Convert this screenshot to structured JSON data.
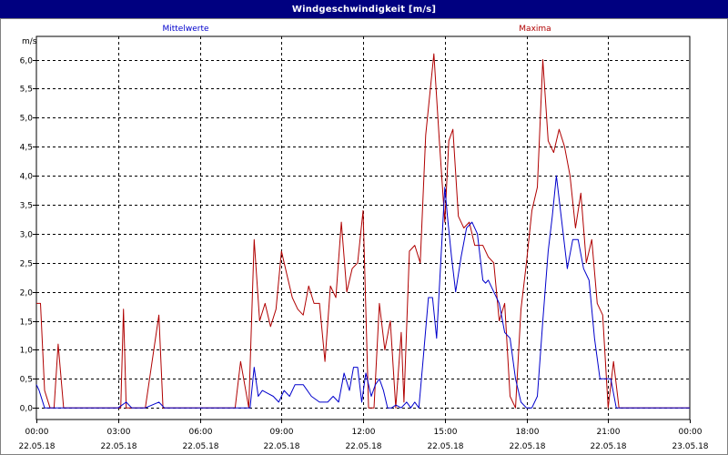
{
  "window": {
    "title": "Windgeschwindigkeit [m/s]"
  },
  "colors": {
    "titlebar": "#000080",
    "mean_series": "#0000cc",
    "max_series": "#b00000",
    "grid": "#000000",
    "text": "#000000"
  },
  "chart_data": {
    "type": "line",
    "ylabel": "m/s",
    "ylim": [
      -0.2,
      6.4
    ],
    "yticks": [
      0.0,
      0.5,
      1.0,
      1.5,
      2.0,
      2.5,
      3.0,
      3.5,
      4.0,
      4.5,
      5.0,
      5.5,
      6.0
    ],
    "ytick_labels": [
      "0,0",
      "0,5",
      "1,0",
      "1,5",
      "2,0",
      "2,5",
      "3,0",
      "3,5",
      "4,0",
      "4,5",
      "5,0",
      "5,5",
      "6,0"
    ],
    "xlim_hours": [
      0,
      24
    ],
    "xticks_hours": [
      0,
      3,
      6,
      9,
      12,
      15,
      18,
      21,
      24
    ],
    "xtick_time_labels": [
      "00:00",
      "03:00",
      "06:00",
      "09:00",
      "12:00",
      "15:00",
      "18:00",
      "21:00",
      "00:00"
    ],
    "xtick_date_labels": [
      "22.05.18",
      "22.05.18",
      "22.05.18",
      "22.05.18",
      "22.05.18",
      "22.05.18",
      "22.05.18",
      "22.05.18",
      "23.05.18"
    ],
    "grid": true,
    "legend_placement": "top",
    "series": [
      {
        "name": "Mittelwerte",
        "color": "#0000cc",
        "x": [
          0.0,
          0.1,
          0.3,
          0.5,
          3.0,
          3.3,
          3.5,
          4.0,
          4.5,
          4.7,
          5.0,
          7.5,
          7.85,
          8.0,
          8.15,
          8.3,
          8.5,
          8.7,
          8.9,
          9.1,
          9.3,
          9.5,
          9.8,
          10.1,
          10.4,
          10.7,
          10.9,
          11.1,
          11.3,
          11.5,
          11.65,
          11.8,
          11.95,
          12.1,
          12.3,
          12.45,
          12.6,
          12.75,
          12.9,
          13.05,
          13.2,
          13.4,
          13.6,
          13.75,
          13.9,
          14.05,
          14.2,
          14.4,
          14.55,
          14.7,
          14.85,
          15.0,
          15.1,
          15.25,
          15.4,
          15.6,
          15.8,
          16.0,
          16.2,
          16.4,
          16.5,
          16.6,
          16.8,
          17.0,
          17.2,
          17.4,
          17.6,
          17.8,
          18.0,
          18.2,
          18.4,
          18.6,
          18.8,
          18.95,
          19.1,
          19.3,
          19.5,
          19.7,
          19.9,
          20.1,
          20.3,
          20.5,
          20.7,
          20.9,
          21.1,
          21.3,
          21.5,
          21.7,
          22.0,
          22.5,
          24.0
        ],
        "values": [
          0.4,
          0.3,
          0.0,
          0.0,
          0.0,
          0.1,
          0.0,
          0.0,
          0.1,
          0.0,
          0.0,
          0.0,
          0.0,
          0.7,
          0.2,
          0.3,
          0.25,
          0.2,
          0.1,
          0.3,
          0.2,
          0.4,
          0.4,
          0.2,
          0.1,
          0.1,
          0.2,
          0.1,
          0.6,
          0.3,
          0.7,
          0.7,
          0.1,
          0.6,
          0.2,
          0.4,
          0.5,
          0.3,
          0.0,
          0.0,
          0.05,
          0.0,
          0.1,
          0.0,
          0.1,
          0.0,
          0.8,
          1.9,
          1.9,
          1.2,
          2.5,
          3.8,
          3.3,
          2.6,
          2.0,
          2.6,
          3.1,
          3.2,
          3.0,
          2.2,
          2.15,
          2.2,
          2.0,
          1.8,
          1.3,
          1.2,
          0.5,
          0.1,
          0.0,
          0.0,
          0.2,
          1.5,
          2.7,
          3.3,
          4.0,
          3.2,
          2.4,
          2.9,
          2.9,
          2.4,
          2.2,
          1.2,
          0.5,
          0.5,
          0.5,
          0.0,
          0.0,
          0.0,
          0.0,
          0.0,
          0.0
        ]
      },
      {
        "name": "Maxima",
        "color": "#b00000",
        "x": [
          0.0,
          0.15,
          0.3,
          0.5,
          0.65,
          0.8,
          1.0,
          3.0,
          3.1,
          3.2,
          3.3,
          4.0,
          4.5,
          4.65,
          5.0,
          7.3,
          7.5,
          7.8,
          8.0,
          8.2,
          8.4,
          8.6,
          8.8,
          9.0,
          9.2,
          9.4,
          9.6,
          9.8,
          10.0,
          10.2,
          10.4,
          10.6,
          10.8,
          11.0,
          11.2,
          11.4,
          11.6,
          11.8,
          12.0,
          12.2,
          12.4,
          12.6,
          12.8,
          13.0,
          13.2,
          13.4,
          13.5,
          13.7,
          13.9,
          14.1,
          14.3,
          14.6,
          14.8,
          15.0,
          15.15,
          15.3,
          15.5,
          15.7,
          15.9,
          16.1,
          16.4,
          16.6,
          16.8,
          17.0,
          17.2,
          17.4,
          17.6,
          17.8,
          18.0,
          18.2,
          18.4,
          18.6,
          18.8,
          19.0,
          19.2,
          19.4,
          19.6,
          19.8,
          20.0,
          20.2,
          20.4,
          20.6,
          20.8,
          21.0,
          21.2,
          21.4,
          21.6,
          21.8,
          22.0,
          22.2,
          22.5,
          24.0
        ],
        "values": [
          1.8,
          1.8,
          0.3,
          0.0,
          0.0,
          1.1,
          0.0,
          0.0,
          0.0,
          1.7,
          0.0,
          0.0,
          1.6,
          0.0,
          0.0,
          0.0,
          0.8,
          0.0,
          2.9,
          1.5,
          1.8,
          1.4,
          1.7,
          2.7,
          2.3,
          1.9,
          1.7,
          1.6,
          2.1,
          1.8,
          1.8,
          0.8,
          2.1,
          1.9,
          3.2,
          2.0,
          2.4,
          2.5,
          3.4,
          0.0,
          0.0,
          1.8,
          1.0,
          1.5,
          0.0,
          1.3,
          0.1,
          2.7,
          2.8,
          2.5,
          4.7,
          6.1,
          4.6,
          3.2,
          4.6,
          4.8,
          3.3,
          3.1,
          3.2,
          2.8,
          2.8,
          2.6,
          2.5,
          1.5,
          1.8,
          0.2,
          0.0,
          1.7,
          2.5,
          3.4,
          3.8,
          6.0,
          4.6,
          4.4,
          4.8,
          4.5,
          4.0,
          3.1,
          3.7,
          2.5,
          2.9,
          1.8,
          1.6,
          0.0,
          0.8,
          0.0,
          0.0,
          0.0,
          0.0,
          0.0,
          0.0,
          0.0
        ]
      }
    ]
  }
}
